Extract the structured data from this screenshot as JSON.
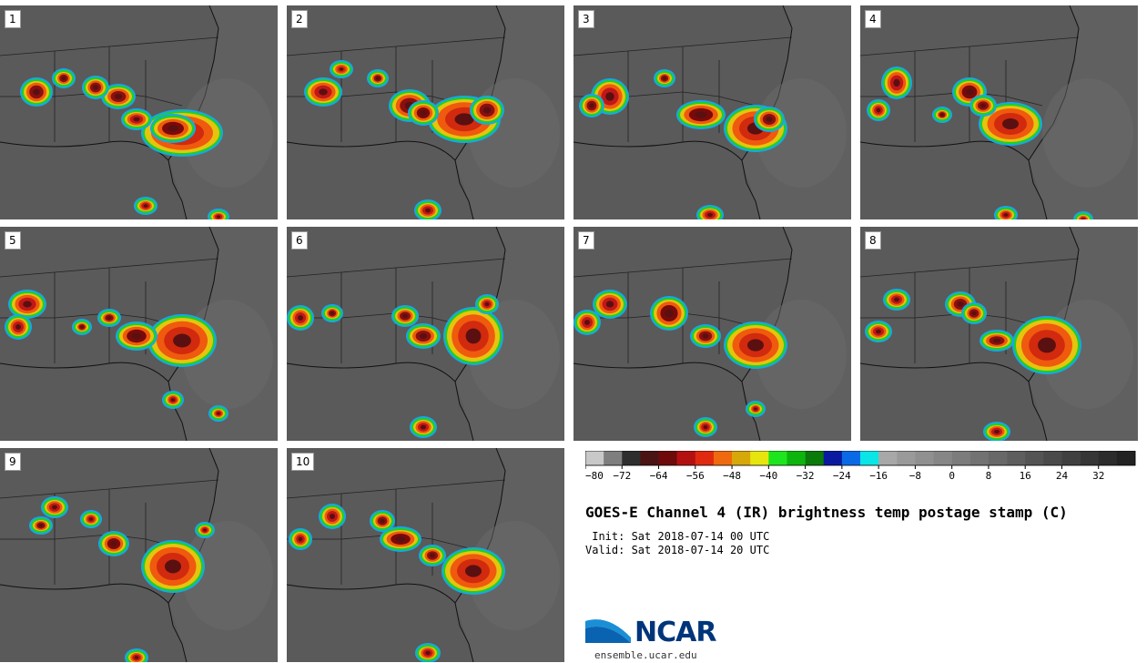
{
  "panels": [
    {
      "label": "1",
      "storms": [
        [
          200,
          140,
          40,
          22,
          "#d12a0e"
        ],
        [
          190,
          135,
          20,
          12,
          "#7a0a0a"
        ],
        [
          130,
          100,
          14,
          10,
          "#8a1010"
        ],
        [
          105,
          90,
          10,
          9,
          "#8a1010"
        ],
        [
          40,
          95,
          13,
          12,
          "#8a1010"
        ],
        [
          70,
          80,
          8,
          7,
          "#8a1010"
        ],
        [
          150,
          125,
          12,
          8,
          "#c01818"
        ],
        [
          160,
          220,
          8,
          6,
          "#c01818"
        ],
        [
          240,
          232,
          7,
          5,
          "#c01818"
        ]
      ]
    },
    {
      "label": "2",
      "storms": [
        [
          195,
          125,
          35,
          22,
          "#d12a0e"
        ],
        [
          135,
          110,
          18,
          14,
          "#8a1010"
        ],
        [
          150,
          118,
          12,
          10,
          "#7a0a0a"
        ],
        [
          40,
          95,
          16,
          12,
          "#c01818"
        ],
        [
          100,
          80,
          7,
          6,
          "#8a1010"
        ],
        [
          155,
          225,
          10,
          8,
          "#c01818"
        ],
        [
          220,
          115,
          14,
          12,
          "#8a1010"
        ],
        [
          60,
          70,
          8,
          6,
          "#d12a0e"
        ]
      ]
    },
    {
      "label": "3",
      "storms": [
        [
          200,
          135,
          30,
          22,
          "#d12a0e"
        ],
        [
          140,
          120,
          22,
          12,
          "#7a0a0a"
        ],
        [
          40,
          100,
          16,
          16,
          "#c01818"
        ],
        [
          100,
          80,
          7,
          6,
          "#8a1010"
        ],
        [
          150,
          230,
          10,
          7,
          "#c01818"
        ],
        [
          215,
          125,
          12,
          10,
          "#8a1010"
        ],
        [
          20,
          110,
          9,
          9,
          "#8a1010"
        ]
      ]
    },
    {
      "label": "4",
      "storms": [
        [
          165,
          130,
          30,
          20,
          "#d12a0e"
        ],
        [
          120,
          95,
          14,
          12,
          "#7a0a0a"
        ],
        [
          40,
          85,
          12,
          14,
          "#c01818"
        ],
        [
          20,
          115,
          8,
          8,
          "#c01818"
        ],
        [
          90,
          120,
          6,
          5,
          "#8a1010"
        ],
        [
          160,
          230,
          8,
          6,
          "#c01818"
        ],
        [
          245,
          235,
          6,
          5,
          "#c01818"
        ],
        [
          135,
          110,
          10,
          8,
          "#8a1010"
        ]
      ]
    },
    {
      "label": "5",
      "storms": [
        [
          200,
          125,
          33,
          25,
          "#d12a0e"
        ],
        [
          150,
          120,
          18,
          12,
          "#7a0a0a"
        ],
        [
          30,
          85,
          16,
          12,
          "#c01818"
        ],
        [
          20,
          110,
          10,
          10,
          "#c01818"
        ],
        [
          90,
          110,
          6,
          5,
          "#8a1010"
        ],
        [
          190,
          190,
          7,
          6,
          "#c01818"
        ],
        [
          240,
          205,
          6,
          5,
          "#c01818"
        ],
        [
          120,
          100,
          8,
          6,
          "#8a1010"
        ]
      ]
    },
    {
      "label": "6",
      "storms": [
        [
          205,
          120,
          28,
          28,
          "#d12a0e"
        ],
        [
          150,
          120,
          14,
          10,
          "#8a1010"
        ],
        [
          130,
          98,
          10,
          8,
          "#8a1010"
        ],
        [
          15,
          100,
          10,
          10,
          "#c01818"
        ],
        [
          150,
          220,
          10,
          8,
          "#c01818"
        ],
        [
          220,
          85,
          8,
          7,
          "#c01818"
        ],
        [
          50,
          95,
          7,
          6,
          "#8a1010"
        ]
      ]
    },
    {
      "label": "7",
      "storms": [
        [
          200,
          130,
          30,
          22,
          "#d12a0e"
        ],
        [
          105,
          95,
          16,
          15,
          "#7a0a0a"
        ],
        [
          40,
          85,
          14,
          12,
          "#c01818"
        ],
        [
          15,
          105,
          10,
          10,
          "#c01818"
        ],
        [
          145,
          120,
          12,
          9,
          "#8a1010"
        ],
        [
          145,
          220,
          8,
          7,
          "#c01818"
        ],
        [
          200,
          200,
          6,
          5,
          "#c01818"
        ]
      ]
    },
    {
      "label": "8",
      "storms": [
        [
          205,
          130,
          33,
          28,
          "#d12a0e"
        ],
        [
          110,
          85,
          12,
          10,
          "#8a1010"
        ],
        [
          125,
          95,
          9,
          8,
          "#8a1010"
        ],
        [
          40,
          80,
          10,
          8,
          "#c01818"
        ],
        [
          150,
          125,
          14,
          8,
          "#8a1010"
        ],
        [
          20,
          115,
          10,
          8,
          "#c01818"
        ],
        [
          150,
          225,
          10,
          7,
          "#c01818"
        ]
      ]
    },
    {
      "label": "9",
      "storms": [
        [
          190,
          130,
          30,
          25,
          "#d12a0e"
        ],
        [
          125,
          105,
          12,
          10,
          "#7a0a0a"
        ],
        [
          60,
          65,
          10,
          8,
          "#c01818"
        ],
        [
          100,
          78,
          7,
          6,
          "#c01818"
        ],
        [
          45,
          85,
          8,
          6,
          "#8a1010"
        ],
        [
          150,
          230,
          8,
          6,
          "#c01818"
        ],
        [
          225,
          90,
          6,
          5,
          "#c01818"
        ]
      ]
    },
    {
      "label": "10",
      "storms": [
        [
          205,
          135,
          30,
          22,
          "#d12a0e"
        ],
        [
          125,
          100,
          18,
          10,
          "#7a0a0a"
        ],
        [
          50,
          75,
          10,
          10,
          "#c01818"
        ],
        [
          105,
          80,
          9,
          8,
          "#8a1010"
        ],
        [
          15,
          100,
          8,
          8,
          "#c01818"
        ],
        [
          155,
          225,
          9,
          7,
          "#c01818"
        ],
        [
          160,
          118,
          10,
          8,
          "#8a1010"
        ]
      ]
    }
  ],
  "colorbar": {
    "colors": [
      "#c8c8c8",
      "#7f7f7f",
      "#2e2e2e",
      "#4a1414",
      "#6e0a0a",
      "#b31111",
      "#e02a10",
      "#ef6a0e",
      "#d6a80a",
      "#e6e60e",
      "#1ee61e",
      "#0eb40e",
      "#0a7a0a",
      "#0a1aa0",
      "#0a6ae6",
      "#0ae6e6",
      "#a8a8a8",
      "#9a9a9a",
      "#909090",
      "#868686",
      "#7c7c7c",
      "#727272",
      "#686868",
      "#5e5e5e",
      "#545454",
      "#4a4a4a",
      "#404040",
      "#363636",
      "#2c2c2c",
      "#222222"
    ],
    "ticks": [
      "−80",
      "−72",
      "−64",
      "−56",
      "−48",
      "−40",
      "−32",
      "−24",
      "−16",
      "−8",
      "0",
      "8",
      "16",
      "24",
      "32"
    ]
  },
  "title": "GOES-E Channel 4 (IR) brightness temp postage stamp (C)",
  "init": " Init: Sat 2018-07-14 00 UTC",
  "valid": "Valid: Sat 2018-07-14 20 UTC",
  "logo": {
    "text": "NCAR",
    "url": "ensemble.ucar.edu"
  }
}
